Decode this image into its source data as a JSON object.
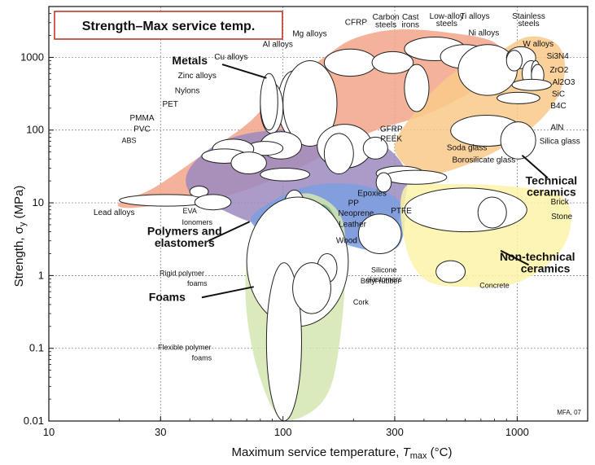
{
  "chart_data": {
    "type": "scatter",
    "title": "Strength–Max service temp.",
    "xlabel_main": "Maximum service temperature,",
    "xlabel_var": "T",
    "xlabel_sub": "max",
    "xlabel_unit": " (°C)",
    "ylabel_main": "Strength, σ",
    "ylabel_sub": "y",
    "ylabel_unit": " (MPa)",
    "xscale": "log",
    "yscale": "log",
    "xlim": [
      10,
      2000
    ],
    "ylim": [
      0.01,
      5000
    ],
    "x_ticks": [
      {
        "v": 10,
        "t": "10"
      },
      {
        "v": 30,
        "t": "30"
      },
      {
        "v": 100,
        "t": "100"
      },
      {
        "v": 300,
        "t": "300"
      },
      {
        "v": 1000,
        "t": "1000"
      }
    ],
    "y_ticks": [
      {
        "v": 0.01,
        "t": "0.01"
      },
      {
        "v": 0.1,
        "t": "0.1"
      },
      {
        "v": 1,
        "t": "1"
      },
      {
        "v": 10,
        "t": "10"
      },
      {
        "v": 100,
        "t": "100"
      },
      {
        "v": 1000,
        "t": "1000"
      }
    ],
    "grid": true,
    "credit": "MFA, 07",
    "families": [
      {
        "name": "Metals",
        "color": "#f2a488",
        "points": [
          [
            20,
            10
          ],
          [
            28,
            16
          ],
          [
            45,
            45
          ],
          [
            70,
            120
          ],
          [
            100,
            380
          ],
          [
            150,
            1000
          ],
          [
            200,
            1800
          ],
          [
            300,
            2400
          ],
          [
            500,
            2200
          ],
          [
            800,
            1600
          ],
          [
            900,
            700
          ],
          [
            600,
            300
          ],
          [
            400,
            160
          ],
          [
            250,
            100
          ],
          [
            160,
            50
          ],
          [
            100,
            24
          ],
          [
            60,
            13
          ],
          [
            35,
            10
          ],
          [
            22,
            8.5
          ]
        ]
      },
      {
        "name": "Technical ceramics",
        "color": "#f9c98a",
        "points": [
          [
            300,
            60
          ],
          [
            380,
            25
          ],
          [
            520,
            28
          ],
          [
            800,
            50
          ],
          [
            1200,
            120
          ],
          [
            1500,
            300
          ],
          [
            1600,
            800
          ],
          [
            1450,
            1600
          ],
          [
            1100,
            1900
          ],
          [
            800,
            1100
          ],
          [
            550,
            650
          ],
          [
            400,
            250
          ]
        ]
      },
      {
        "name": "Polymers and elastomers",
        "color": "#9b8ac0",
        "points": [
          [
            40,
            30
          ],
          [
            55,
            70
          ],
          [
            90,
            100
          ],
          [
            150,
            95
          ],
          [
            250,
            70
          ],
          [
            330,
            30
          ],
          [
            330,
            10
          ],
          [
            280,
            3.5
          ],
          [
            200,
            2.8
          ],
          [
            120,
            4.5
          ],
          [
            80,
            5
          ],
          [
            55,
            8
          ],
          [
            40,
            14
          ]
        ]
      },
      {
        "name": "Polymers and elastomers",
        "color": "#7b9fe0",
        "points": [
          [
            75,
            7
          ],
          [
            120,
            16
          ],
          [
            200,
            18
          ],
          [
            300,
            12
          ],
          [
            330,
            6
          ],
          [
            310,
            2.5
          ],
          [
            240,
            2.2
          ],
          [
            160,
            3
          ],
          [
            110,
            3.5
          ],
          [
            80,
            4.2
          ]
        ]
      },
      {
        "name": "Non-technical ceramics",
        "color": "#fbf3a8",
        "points": [
          [
            330,
            16
          ],
          [
            500,
            18
          ],
          [
            900,
            17
          ],
          [
            1500,
            13
          ],
          [
            1700,
            6
          ],
          [
            1500,
            2
          ],
          [
            1000,
            0.8
          ],
          [
            600,
            0.7
          ],
          [
            400,
            0.9
          ],
          [
            330,
            3
          ]
        ]
      },
      {
        "name": "Foams",
        "color": "#d5e6b2",
        "points": [
          [
            90,
            6
          ],
          [
            110,
            12
          ],
          [
            135,
            13
          ],
          [
            170,
            8
          ],
          [
            185,
            3
          ],
          [
            180,
            0.3
          ],
          [
            160,
            0.03
          ],
          [
            125,
            0.012
          ],
          [
            95,
            0.012
          ],
          [
            78,
            0.05
          ],
          [
            70,
            0.3
          ],
          [
            70,
            1.5
          ],
          [
            78,
            4
          ]
        ]
      },
      {
        "name": "Wood",
        "color": "#6fb07a",
        "points": [
          [
            140,
            9
          ],
          [
            160,
            8
          ],
          [
            185,
            2.5
          ],
          [
            180,
            0.8
          ],
          [
            165,
            0.8
          ],
          [
            150,
            1.8
          ],
          [
            130,
            4.5
          ]
        ]
      }
    ],
    "bubbles": [
      {
        "name": "CFRP",
        "x": [
          150,
          250
        ],
        "y": [
          550,
          1300
        ]
      },
      {
        "name": "Carbon steels",
        "x": [
          240,
          360
        ],
        "y": [
          600,
          1200
        ]
      },
      {
        "name": "Cast irons",
        "x": [
          330,
          420
        ],
        "y": [
          180,
          800
        ]
      },
      {
        "name": "Low-alloy steels",
        "x": [
          330,
          600
        ],
        "y": [
          900,
          1900
        ]
      },
      {
        "name": "Ti alloys",
        "x": [
          470,
          760
        ],
        "y": [
          700,
          1500
        ]
      },
      {
        "name": "Ni alloys",
        "x": [
          560,
          1000
        ],
        "y": [
          300,
          1500
        ]
      },
      {
        "name": "Stainless steels",
        "x": [
          900,
          1200
        ],
        "y": [
          700,
          1400
        ]
      },
      {
        "name": "W alloys",
        "x": [
          900,
          1050
        ],
        "y": [
          650,
          1250
        ]
      },
      {
        "name": "Si3N4",
        "x": [
          1050,
          1250
        ],
        "y": [
          400,
          900
        ]
      },
      {
        "name": "ZrO2",
        "x": [
          1150,
          1250
        ],
        "y": [
          480,
          900
        ]
      },
      {
        "name": "Al2O3",
        "x": [
          1150,
          1300
        ],
        "y": [
          400,
          800
        ]
      },
      {
        "name": "SiC",
        "x": [
          950,
          1400
        ],
        "y": [
          350,
          500
        ]
      },
      {
        "name": "B4C",
        "x": [
          820,
          1250
        ],
        "y": [
          230,
          330
        ]
      },
      {
        "name": "AlN",
        "x": [
          520,
          1050
        ],
        "y": [
          60,
          160
        ]
      },
      {
        "name": "Silica glass",
        "x": [
          850,
          1200
        ],
        "y": [
          40,
          130
        ]
      },
      {
        "name": "Mg alloys",
        "x": [
          95,
          130
        ],
        "y": [
          80,
          650
        ]
      },
      {
        "name": "Al alloys",
        "x": [
          100,
          170
        ],
        "y": [
          60,
          900
        ]
      },
      {
        "name": "Cu alloys",
        "x": [
          80,
          100
        ],
        "y": [
          90,
          450
        ]
      },
      {
        "name": "Zinc alloys",
        "x": [
          80,
          95
        ],
        "y": [
          100,
          600
        ]
      },
      {
        "name": "Lead alloys",
        "x": [
          20,
          50
        ],
        "y": [
          9,
          13
        ]
      },
      {
        "name": "Nylons",
        "x": [
          80,
          120
        ],
        "y": [
          40,
          95
        ]
      },
      {
        "name": "PET",
        "x": [
          70,
          100
        ],
        "y": [
          45,
          70
        ]
      },
      {
        "name": "PMMA",
        "x": [
          50,
          75
        ],
        "y": [
          40,
          75
        ]
      },
      {
        "name": "PVC",
        "x": [
          45,
          70
        ],
        "y": [
          35,
          55
        ]
      },
      {
        "name": "ABS",
        "x": [
          60,
          85
        ],
        "y": [
          25,
          50
        ]
      },
      {
        "name": "PP",
        "x": [
          80,
          130
        ],
        "y": [
          20,
          30
        ]
      },
      {
        "name": "GFRP",
        "x": [
          140,
          240
        ],
        "y": [
          30,
          120
        ]
      },
      {
        "name": "PEEK",
        "x": [
          220,
          280
        ],
        "y": [
          40,
          80
        ]
      },
      {
        "name": "Epoxies",
        "x": [
          150,
          200
        ],
        "y": [
          25,
          90
        ]
      },
      {
        "name": "Neoprene",
        "x": [
          95,
          110
        ],
        "y": [
          3,
          9
        ]
      },
      {
        "name": "Leather",
        "x": [
          100,
          125
        ],
        "y": [
          4,
          15
        ]
      },
      {
        "name": "Wood",
        "x": [
          115,
          135
        ],
        "y": [
          1.5,
          7
        ]
      },
      {
        "name": "Silicone elastomers",
        "x": [
          210,
          320
        ],
        "y": [
          2,
          7
        ]
      },
      {
        "name": "Soda glass",
        "x": [
          250,
          400
        ],
        "y": [
          20,
          32
        ]
      },
      {
        "name": "Borosilicate glass",
        "x": [
          270,
          500
        ],
        "y": [
          18,
          28
        ]
      },
      {
        "name": "PTFE",
        "x": [
          250,
          290
        ],
        "y": [
          14,
          26
        ]
      },
      {
        "name": "EVA",
        "x": [
          40,
          48
        ],
        "y": [
          12,
          17
        ]
      },
      {
        "name": "Ionomers",
        "x": [
          42,
          60
        ],
        "y": [
          8,
          13
        ]
      },
      {
        "name": "Brick",
        "x": [
          330,
          1100
        ],
        "y": [
          4,
          16
        ]
      },
      {
        "name": "Stone",
        "x": [
          680,
          900
        ],
        "y": [
          4.5,
          12
        ]
      },
      {
        "name": "Concrete",
        "x": [
          450,
          600
        ],
        "y": [
          0.8,
          1.6
        ]
      },
      {
        "name": "Rigid polymer foams",
        "x": [
          70,
          190
        ],
        "y": [
          0.2,
          12
        ]
      },
      {
        "name": "Flexible polymer foams",
        "x": [
          85,
          120
        ],
        "y": [
          0.01,
          1.5
        ]
      },
      {
        "name": "Butyl rubber",
        "x": [
          140,
          170
        ],
        "y": [
          0.8,
          2
        ]
      },
      {
        "name": "Cork",
        "x": [
          110,
          160
        ],
        "y": [
          0.3,
          1.5
        ]
      }
    ],
    "labels": [
      {
        "text": "Metals",
        "x": 40,
        "y": 800,
        "cls": "big"
      },
      {
        "text": "Technical",
        "x": 1400,
        "y": 18,
        "cls": "big"
      },
      {
        "text": "ceramics",
        "x": 1400,
        "y": 12.5,
        "cls": "big"
      },
      {
        "text": "Polymers and",
        "x": 38,
        "y": 3.6,
        "cls": "big"
      },
      {
        "text": "elastomers",
        "x": 38,
        "y": 2.5,
        "cls": "big"
      },
      {
        "text": "Non-technical",
        "x": 1220,
        "y": 1.6,
        "cls": "big"
      },
      {
        "text": "ceramics",
        "x": 1320,
        "y": 1.1,
        "cls": "big"
      },
      {
        "text": "Foams",
        "x": 32,
        "y": 0.45,
        "cls": "big"
      },
      {
        "text": "CFRP",
        "x": 205,
        "y": 2800,
        "cls": "mid"
      },
      {
        "text": "Carbon",
        "x": 275,
        "y": 3300,
        "cls": "mid"
      },
      {
        "text": "steels",
        "x": 275,
        "y": 2600,
        "cls": "mid"
      },
      {
        "text": "Cast",
        "x": 350,
        "y": 3300,
        "cls": "mid"
      },
      {
        "text": "irons",
        "x": 350,
        "y": 2600,
        "cls": "mid"
      },
      {
        "text": "Low-alloy",
        "x": 500,
        "y": 3400,
        "cls": "mid"
      },
      {
        "text": "steels",
        "x": 500,
        "y": 2700,
        "cls": "mid"
      },
      {
        "text": "Ti alloys",
        "x": 660,
        "y": 3400,
        "cls": "mid"
      },
      {
        "text": "Stainless",
        "x": 1120,
        "y": 3400,
        "cls": "mid"
      },
      {
        "text": "steels",
        "x": 1120,
        "y": 2700,
        "cls": "mid"
      },
      {
        "text": "Ni alloys",
        "x": 720,
        "y": 2000,
        "cls": "mid"
      },
      {
        "text": "W alloys",
        "x": 1230,
        "y": 1420,
        "cls": "mid"
      },
      {
        "text": "Si3N4",
        "x": 1490,
        "y": 960,
        "cls": "mid"
      },
      {
        "text": "ZrO2",
        "x": 1510,
        "y": 620,
        "cls": "mid"
      },
      {
        "text": "Al2O3",
        "x": 1580,
        "y": 420,
        "cls": "mid"
      },
      {
        "text": "SiC",
        "x": 1500,
        "y": 290,
        "cls": "mid"
      },
      {
        "text": "B4C",
        "x": 1500,
        "y": 200,
        "cls": "mid"
      },
      {
        "text": "AlN",
        "x": 1480,
        "y": 100,
        "cls": "mid"
      },
      {
        "text": "Silica glass",
        "x": 1520,
        "y": 65,
        "cls": "mid"
      },
      {
        "text": "Mg alloys",
        "x": 130,
        "y": 1950,
        "cls": "mid"
      },
      {
        "text": "Al alloys",
        "x": 95,
        "y": 1400,
        "cls": "mid"
      },
      {
        "text": "Cu alloys",
        "x": 60,
        "y": 930,
        "cls": "mid"
      },
      {
        "text": "Zinc alloys",
        "x": 43,
        "y": 520,
        "cls": "mid"
      },
      {
        "text": "Nylons",
        "x": 39,
        "y": 320,
        "cls": "mid"
      },
      {
        "text": "PET",
        "x": 33,
        "y": 210,
        "cls": "mid"
      },
      {
        "text": "PMMA",
        "x": 25,
        "y": 135,
        "cls": "mid"
      },
      {
        "text": "PVC",
        "x": 25,
        "y": 95,
        "cls": "mid"
      },
      {
        "text": "ABS",
        "x": 22,
        "y": 67,
        "cls": "small"
      },
      {
        "text": "GFRP",
        "x": 290,
        "y": 96,
        "cls": "mid"
      },
      {
        "text": "PEEK",
        "x": 290,
        "y": 70,
        "cls": "mid"
      },
      {
        "text": "Soda glass",
        "x": 610,
        "y": 53,
        "cls": "mid"
      },
      {
        "text": "Borosilicate glass",
        "x": 720,
        "y": 36,
        "cls": "mid"
      },
      {
        "text": "Epoxies",
        "x": 240,
        "y": 12.5,
        "cls": "mid"
      },
      {
        "text": "PP",
        "x": 200,
        "y": 9.2,
        "cls": "mid"
      },
      {
        "text": "Neoprene",
        "x": 205,
        "y": 6.6,
        "cls": "mid"
      },
      {
        "text": "Leather",
        "x": 198,
        "y": 4.7,
        "cls": "mid"
      },
      {
        "text": "Wood",
        "x": 187,
        "y": 2.8,
        "cls": "mid"
      },
      {
        "text": "PTFE",
        "x": 320,
        "y": 7.2,
        "cls": "mid"
      },
      {
        "text": "Brick",
        "x": 1520,
        "y": 9.5,
        "cls": "mid"
      },
      {
        "text": "Stone",
        "x": 1550,
        "y": 6.0,
        "cls": "mid"
      },
      {
        "text": "Lead alloys",
        "x": 19,
        "y": 6.8,
        "cls": "mid"
      },
      {
        "text": "EVA",
        "x": 40,
        "y": 7.2,
        "cls": "small"
      },
      {
        "text": "Ionomers",
        "x": 43,
        "y": 5.0,
        "cls": "small"
      },
      {
        "text": "Silicone",
        "x": 270,
        "y": 1.1,
        "cls": "small"
      },
      {
        "text": "elastomers",
        "x": 270,
        "y": 0.82,
        "cls": "small"
      },
      {
        "text": "Rigid polymer",
        "x": 37,
        "y": 1.0,
        "cls": "small"
      },
      {
        "text": "foams",
        "x": 43,
        "y": 0.72,
        "cls": "small"
      },
      {
        "text": "Butyl rubber",
        "x": 260,
        "y": 0.78,
        "cls": "small"
      },
      {
        "text": "Concrete",
        "x": 800,
        "y": 0.68,
        "cls": "small"
      },
      {
        "text": "Cork",
        "x": 215,
        "y": 0.4,
        "cls": "small"
      },
      {
        "text": "Flexible polymer",
        "x": 38,
        "y": 0.095,
        "cls": "small"
      },
      {
        "text": "foams",
        "x": 45,
        "y": 0.068,
        "cls": "small"
      }
    ]
  }
}
